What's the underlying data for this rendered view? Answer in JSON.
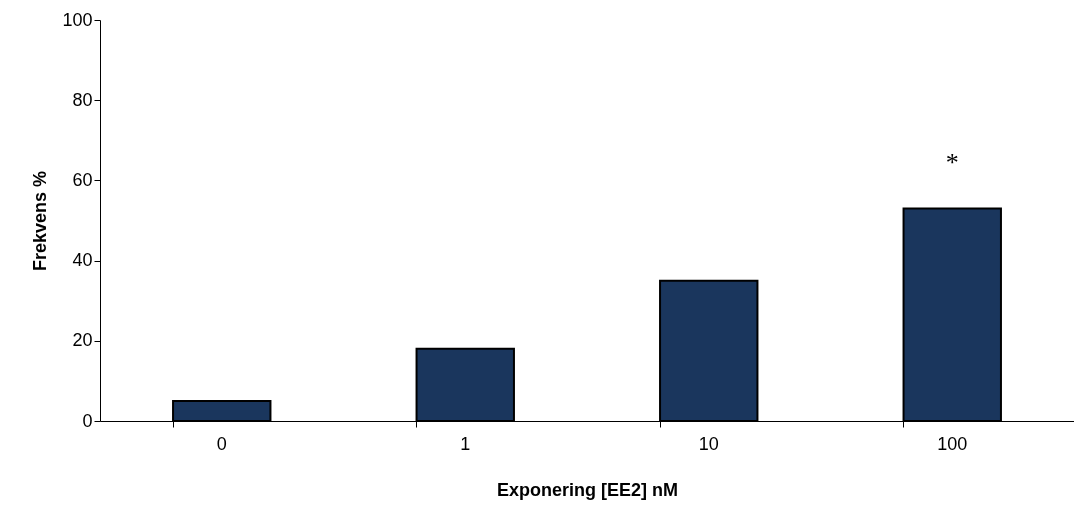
{
  "chart_data": {
    "type": "bar",
    "xlabel": "Exponering [EE2] nM",
    "ylabel": "Frekvens %",
    "categories": [
      "0",
      "1",
      "10",
      "100"
    ],
    "values": [
      5,
      18,
      35,
      53
    ],
    "color": "#1a365d",
    "ylim": [
      0,
      100
    ],
    "yticks": [
      0,
      20,
      40,
      60,
      80,
      100
    ],
    "grid": false,
    "annotations": [
      "*"
    ]
  }
}
